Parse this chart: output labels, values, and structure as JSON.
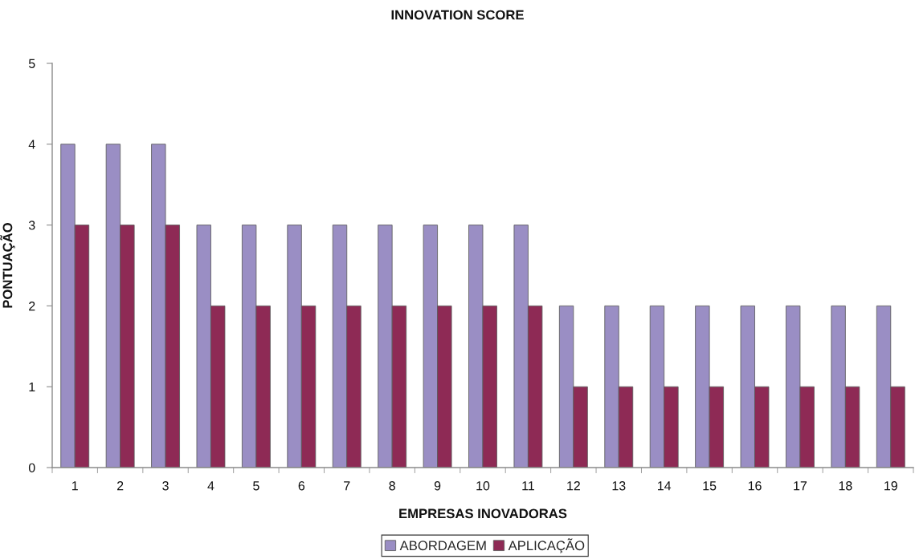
{
  "chart_data": {
    "type": "bar",
    "title": "INNOVATION SCORE",
    "xlabel": "EMPRESAS INOVADORAS",
    "ylabel": "PONTUAÇÃO",
    "categories": [
      "1",
      "2",
      "3",
      "4",
      "5",
      "6",
      "7",
      "8",
      "9",
      "10",
      "11",
      "12",
      "13",
      "14",
      "15",
      "16",
      "17",
      "18",
      "19"
    ],
    "series": [
      {
        "name": "ABORDAGEM",
        "color": "#9a8ec4",
        "values": [
          4,
          4,
          4,
          3,
          3,
          3,
          3,
          3,
          3,
          3,
          3,
          2,
          2,
          2,
          2,
          2,
          2,
          2,
          2
        ]
      },
      {
        "name": "APLICAÇÃO",
        "color": "#8e2a55",
        "values": [
          3,
          3,
          3,
          2,
          2,
          2,
          2,
          2,
          2,
          2,
          2,
          1,
          1,
          1,
          1,
          1,
          1,
          1,
          1
        ]
      }
    ],
    "ylim": [
      0,
      5
    ],
    "yticks": [
      0,
      1,
      2,
      3,
      4,
      5
    ],
    "legend": "bottom"
  }
}
